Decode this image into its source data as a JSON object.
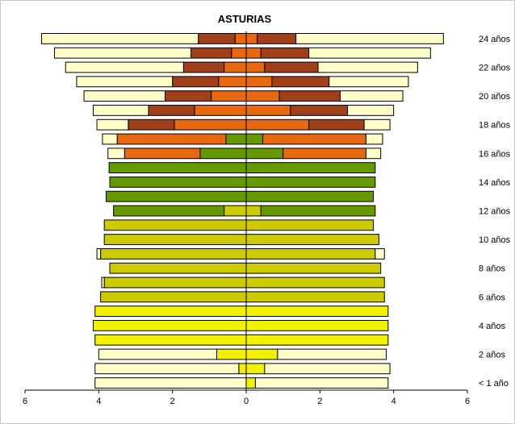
{
  "chart_data": {
    "type": "bar",
    "title": "ASTURIAS",
    "orientation": "horizontal-population-pyramid",
    "x_range": [
      -6,
      6
    ],
    "x_ticks": [
      -6,
      -4,
      -2,
      0,
      2,
      4,
      6
    ],
    "x_tick_labels": [
      "6",
      "4",
      "2",
      "0",
      "2",
      "4",
      "6"
    ],
    "y_labels": [
      "< 1 año",
      "2 años",
      "4 años",
      "6 años",
      "8 años",
      "10 años",
      "12 años",
      "14 años",
      "16 años",
      "18 años",
      "20 años",
      "22 años",
      "24 años"
    ],
    "label_every": 2,
    "colors": {
      "none": "#fffdc8",
      "infantil": "#f2f200",
      "primaria": "#cbcb00",
      "eso": "#669900",
      "bachillerato": "#e86810",
      "fp": "#a0401a",
      "outline": "#000000"
    },
    "ages": [
      "0",
      "1",
      "2",
      "3",
      "4",
      "5",
      "6",
      "7",
      "8",
      "9",
      "10",
      "11",
      "12",
      "13",
      "14",
      "15",
      "16",
      "17",
      "18",
      "19",
      "20",
      "21",
      "22",
      "23",
      "24"
    ],
    "left_side": [
      [
        {
          "c": "none",
          "v": 4.1
        }
      ],
      [
        {
          "c": "infantil",
          "v": 0.2
        },
        {
          "c": "none",
          "v": 3.9
        }
      ],
      [
        {
          "c": "infantil",
          "v": 0.8
        },
        {
          "c": "none",
          "v": 3.2
        }
      ],
      [
        {
          "c": "infantil",
          "v": 4.1
        }
      ],
      [
        {
          "c": "infantil",
          "v": 4.15
        }
      ],
      [
        {
          "c": "infantil",
          "v": 4.1
        }
      ],
      [
        {
          "c": "primaria",
          "v": 3.95
        }
      ],
      [
        {
          "c": "primaria",
          "v": 3.85
        },
        {
          "c": "none",
          "v": 0.07
        }
      ],
      [
        {
          "c": "primaria",
          "v": 3.7
        }
      ],
      [
        {
          "c": "primaria",
          "v": 3.95
        },
        {
          "c": "none",
          "v": 0.1
        }
      ],
      [
        {
          "c": "primaria",
          "v": 3.85
        }
      ],
      [
        {
          "c": "primaria",
          "v": 3.85
        }
      ],
      [
        {
          "c": "primaria",
          "v": 0.6
        },
        {
          "c": "eso",
          "v": 3.0
        }
      ],
      [
        {
          "c": "eso",
          "v": 3.8
        }
      ],
      [
        {
          "c": "eso",
          "v": 3.7
        }
      ],
      [
        {
          "c": "eso",
          "v": 3.72
        }
      ],
      [
        {
          "c": "eso",
          "v": 1.25
        },
        {
          "c": "bachillerato",
          "v": 2.05
        },
        {
          "c": "none",
          "v": 0.45
        }
      ],
      [
        {
          "c": "eso",
          "v": 0.55
        },
        {
          "c": "bachillerato",
          "v": 2.95
        },
        {
          "c": "none",
          "v": 0.4
        }
      ],
      [
        {
          "c": "bachillerato",
          "v": 1.95
        },
        {
          "c": "fp",
          "v": 1.25
        },
        {
          "c": "none",
          "v": 0.85
        }
      ],
      [
        {
          "c": "bachillerato",
          "v": 1.4
        },
        {
          "c": "fp",
          "v": 1.25
        },
        {
          "c": "none",
          "v": 1.5
        }
      ],
      [
        {
          "c": "bachillerato",
          "v": 0.95
        },
        {
          "c": "fp",
          "v": 1.25
        },
        {
          "c": "none",
          "v": 2.2
        }
      ],
      [
        {
          "c": "bachillerato",
          "v": 0.75
        },
        {
          "c": "fp",
          "v": 1.25
        },
        {
          "c": "none",
          "v": 2.6
        }
      ],
      [
        {
          "c": "bachillerato",
          "v": 0.6
        },
        {
          "c": "fp",
          "v": 1.1
        },
        {
          "c": "none",
          "v": 3.2
        }
      ],
      [
        {
          "c": "bachillerato",
          "v": 0.4
        },
        {
          "c": "fp",
          "v": 1.1
        },
        {
          "c": "none",
          "v": 3.7
        }
      ],
      [
        {
          "c": "bachillerato",
          "v": 0.3
        },
        {
          "c": "fp",
          "v": 1.0
        },
        {
          "c": "none",
          "v": 4.25
        }
      ]
    ],
    "right_side": [
      [
        {
          "c": "infantil",
          "v": 0.25
        },
        {
          "c": "none",
          "v": 3.6
        }
      ],
      [
        {
          "c": "infantil",
          "v": 0.5
        },
        {
          "c": "none",
          "v": 3.4
        }
      ],
      [
        {
          "c": "infantil",
          "v": 0.85
        },
        {
          "c": "none",
          "v": 2.95
        }
      ],
      [
        {
          "c": "infantil",
          "v": 3.85
        }
      ],
      [
        {
          "c": "infantil",
          "v": 3.85
        }
      ],
      [
        {
          "c": "infantil",
          "v": 3.85
        }
      ],
      [
        {
          "c": "primaria",
          "v": 3.75
        }
      ],
      [
        {
          "c": "primaria",
          "v": 3.75
        }
      ],
      [
        {
          "c": "primaria",
          "v": 3.65
        }
      ],
      [
        {
          "c": "primaria",
          "v": 3.5
        },
        {
          "c": "none",
          "v": 0.25
        }
      ],
      [
        {
          "c": "primaria",
          "v": 3.6
        }
      ],
      [
        {
          "c": "primaria",
          "v": 3.45
        }
      ],
      [
        {
          "c": "primaria",
          "v": 0.4
        },
        {
          "c": "eso",
          "v": 3.1
        }
      ],
      [
        {
          "c": "eso",
          "v": 3.45
        }
      ],
      [
        {
          "c": "eso",
          "v": 3.5
        }
      ],
      [
        {
          "c": "eso",
          "v": 3.5
        }
      ],
      [
        {
          "c": "eso",
          "v": 1.0
        },
        {
          "c": "bachillerato",
          "v": 2.25
        },
        {
          "c": "none",
          "v": 0.4
        }
      ],
      [
        {
          "c": "eso",
          "v": 0.45
        },
        {
          "c": "bachillerato",
          "v": 2.8
        },
        {
          "c": "none",
          "v": 0.45
        }
      ],
      [
        {
          "c": "bachillerato",
          "v": 1.7
        },
        {
          "c": "fp",
          "v": 1.5
        },
        {
          "c": "none",
          "v": 0.7
        }
      ],
      [
        {
          "c": "bachillerato",
          "v": 1.2
        },
        {
          "c": "fp",
          "v": 1.55
        },
        {
          "c": "none",
          "v": 1.25
        }
      ],
      [
        {
          "c": "bachillerato",
          "v": 0.9
        },
        {
          "c": "fp",
          "v": 1.65
        },
        {
          "c": "none",
          "v": 1.7
        }
      ],
      [
        {
          "c": "bachillerato",
          "v": 0.7
        },
        {
          "c": "fp",
          "v": 1.55
        },
        {
          "c": "none",
          "v": 2.15
        }
      ],
      [
        {
          "c": "bachillerato",
          "v": 0.5
        },
        {
          "c": "fp",
          "v": 1.45
        },
        {
          "c": "none",
          "v": 2.7
        }
      ],
      [
        {
          "c": "bachillerato",
          "v": 0.4
        },
        {
          "c": "fp",
          "v": 1.3
        },
        {
          "c": "none",
          "v": 3.3
        }
      ],
      [
        {
          "c": "bachillerato",
          "v": 0.3
        },
        {
          "c": "fp",
          "v": 1.05
        },
        {
          "c": "none",
          "v": 4.0
        }
      ]
    ],
    "grid": false,
    "legend": "none"
  }
}
